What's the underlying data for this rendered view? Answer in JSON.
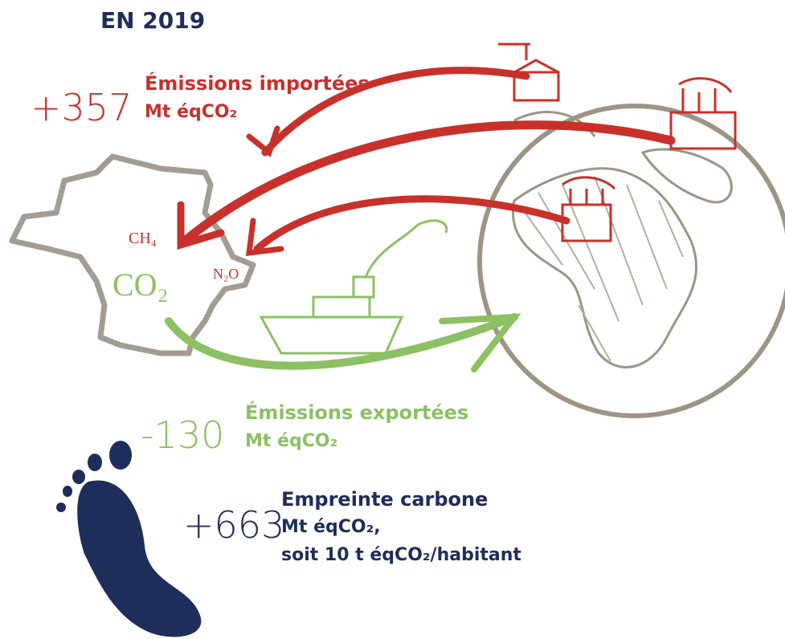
{
  "header": {
    "title": "EN 2019"
  },
  "imported": {
    "value": "+357",
    "label": "Émissions importées",
    "unit": "Mt éqCO₂"
  },
  "gases": {
    "ch4": "CH₄",
    "n2o": "N₂O",
    "co2": "CO₂"
  },
  "exported": {
    "value": "-130",
    "label": "Émissions exportées",
    "unit": "Mt éqCO₂"
  },
  "footprint": {
    "value": "+663",
    "label": "Empreinte carbone",
    "unit": "Mt éqCO₂,",
    "per_capita": "soit 10 t éqCO₂/habitant"
  }
}
